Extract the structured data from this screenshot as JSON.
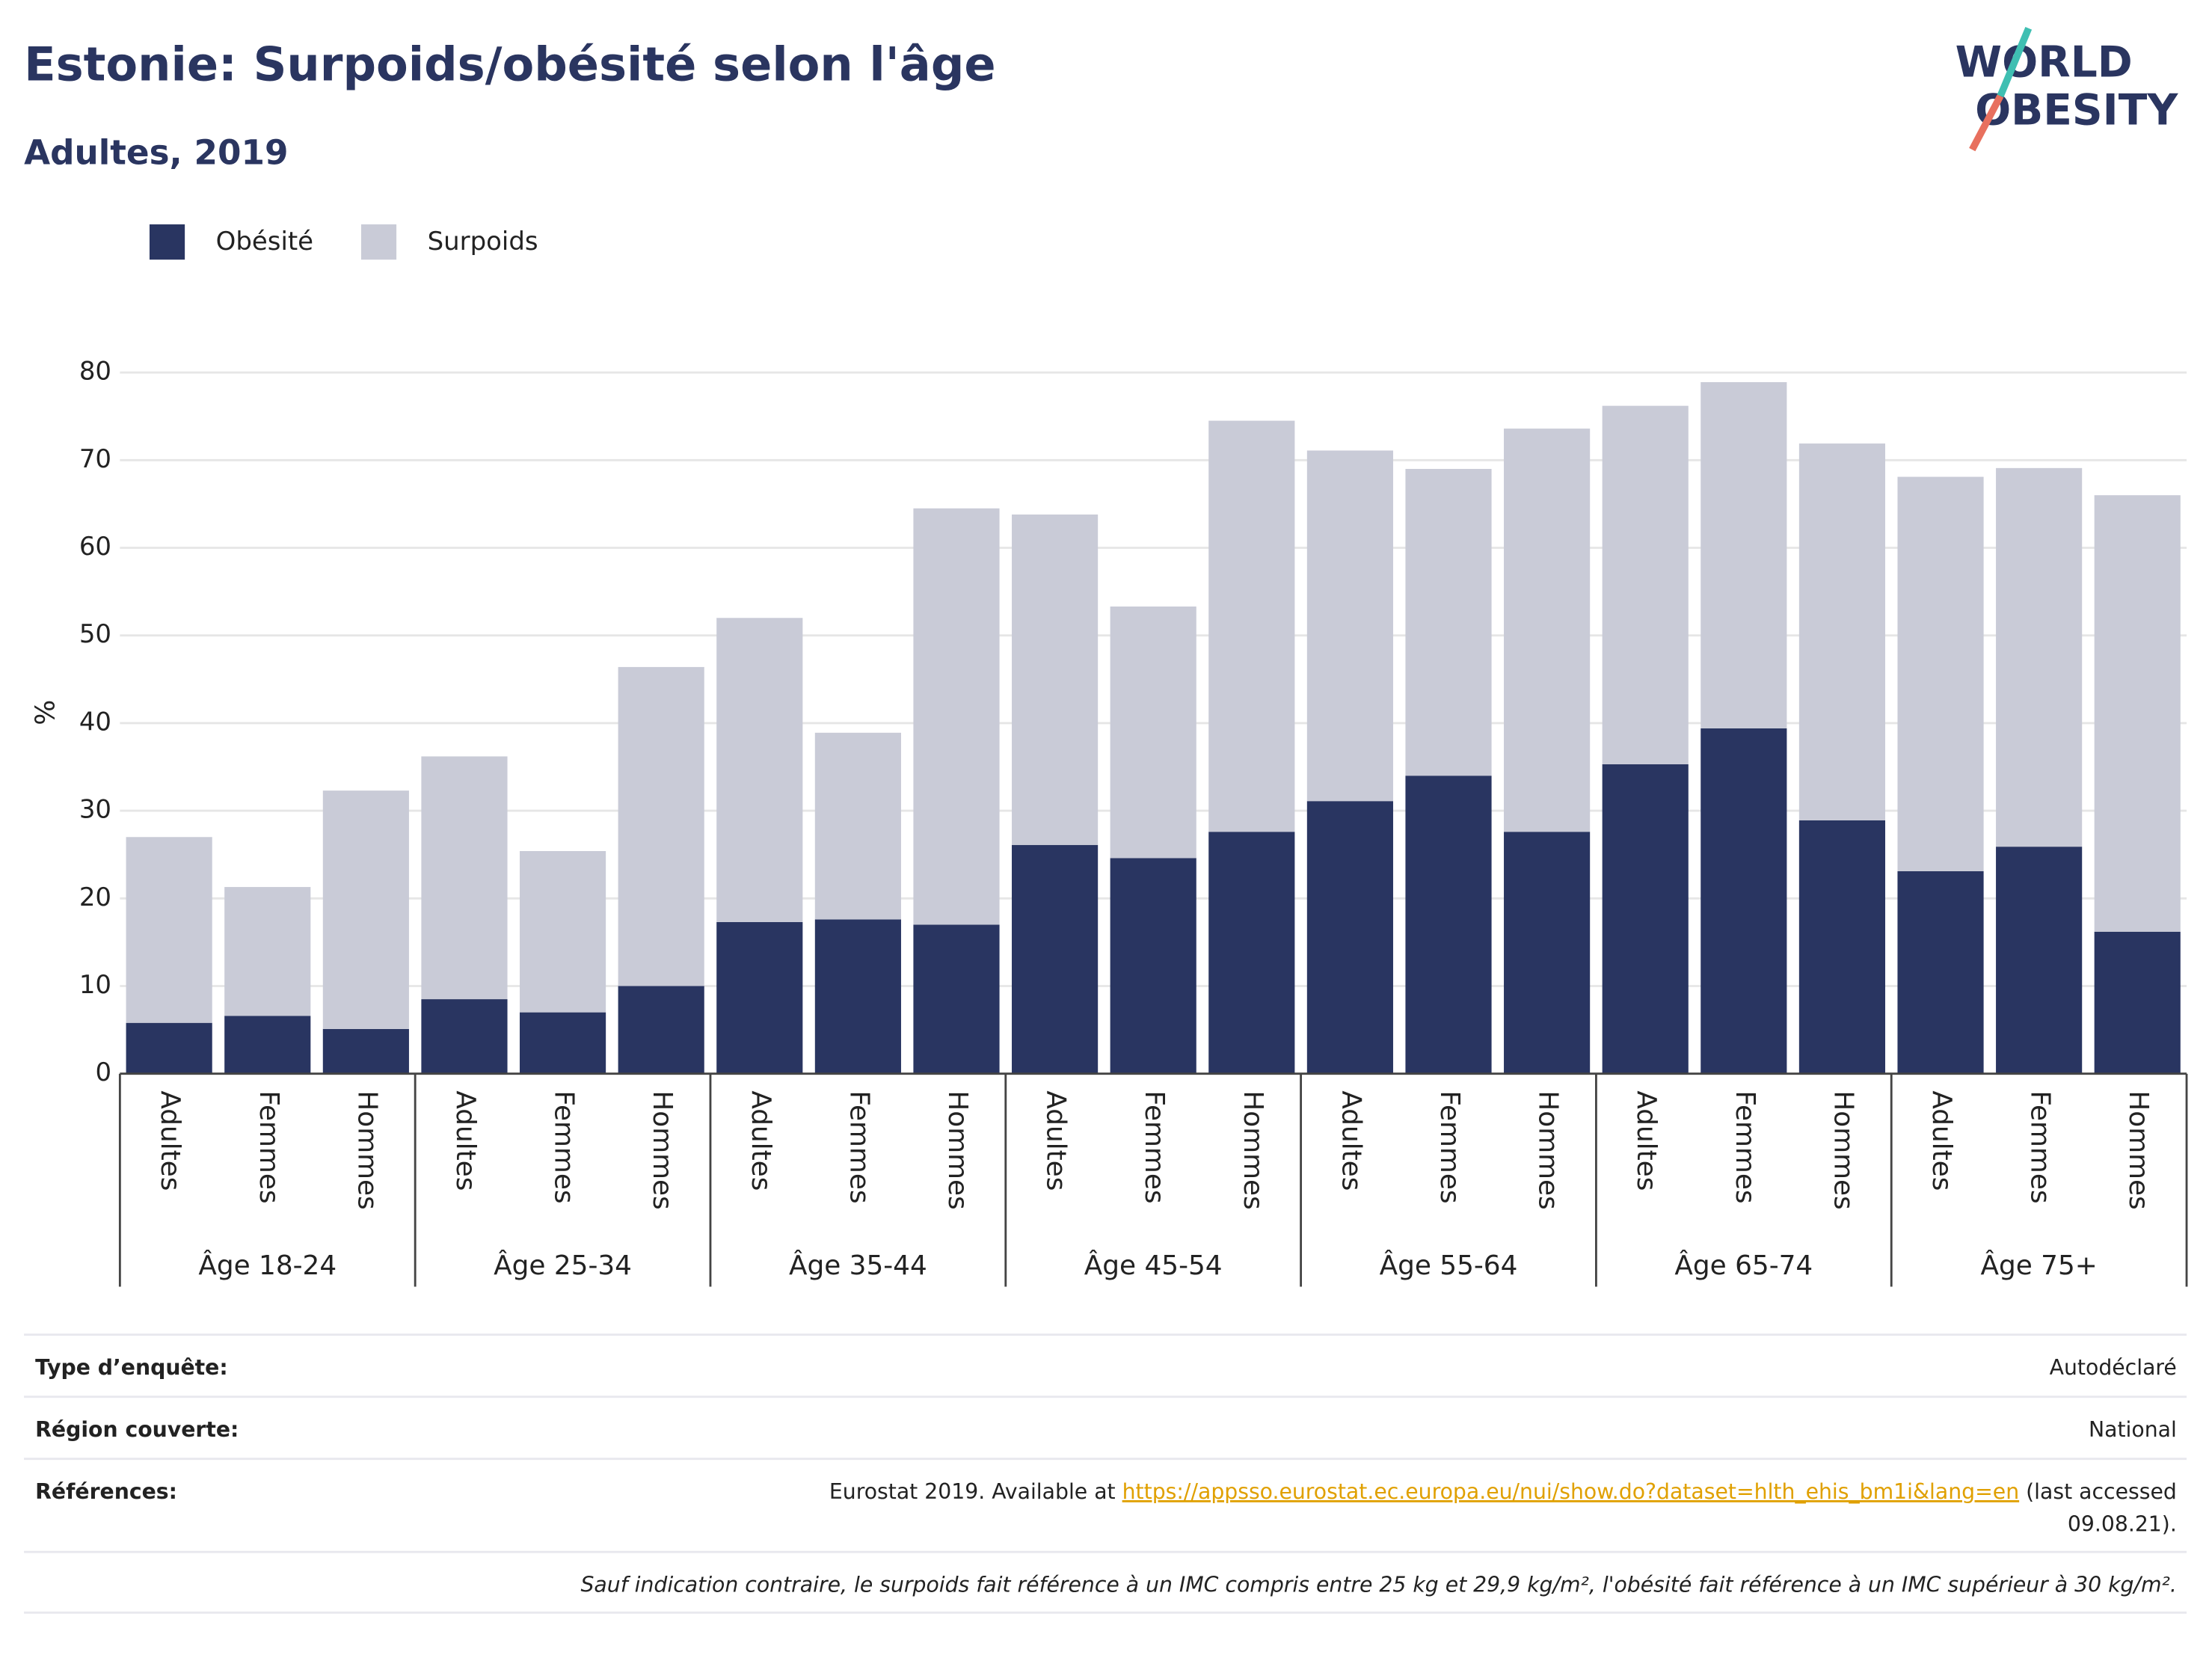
{
  "chart_data": {
    "type": "stacked_bar",
    "title": "Estonie: Surpoids/obésité selon l'âge",
    "subtitle": "Adultes, 2019",
    "y_label": "%",
    "categories": [
      "Adultes",
      "Femmes",
      "Hommes",
      "Adultes",
      "Femmes",
      "Hommes",
      "Adultes",
      "Femmes",
      "Hommes",
      "Adultes",
      "Femmes",
      "Hommes",
      "Adultes",
      "Femmes",
      "Hommes",
      "Adultes",
      "Femmes",
      "Hommes",
      "Adultes",
      "Femmes",
      "Hommes"
    ],
    "groups": [
      "Âge 18-24",
      "Âge 25-34",
      "Âge 35-44",
      "Âge 45-54",
      "Âge 55-64",
      "Âge 65-74",
      "Âge 75+"
    ],
    "series": [
      {
        "name": "Obésité",
        "color": "#293561",
        "values": [
          5.8,
          6.6,
          5.1,
          8.5,
          7.0,
          10.0,
          17.3,
          17.6,
          17.0,
          26.1,
          24.6,
          27.6,
          31.1,
          34.0,
          27.6,
          35.3,
          39.4,
          28.9,
          23.1,
          25.9,
          16.2
        ]
      },
      {
        "name": "Surpoids",
        "color": "#c9cbd7",
        "values": [
          21.2,
          14.7,
          27.2,
          27.7,
          18.4,
          36.4,
          34.7,
          21.3,
          47.5,
          37.7,
          28.7,
          46.9,
          40.0,
          35.0,
          46.0,
          40.9,
          39.5,
          43.0,
          45.0,
          43.2,
          49.8
        ]
      }
    ],
    "ylim": [
      0,
      80
    ],
    "yticks": [
      0,
      10,
      20,
      30,
      40,
      50,
      60,
      70,
      80
    ],
    "grid": true,
    "legend": "top-left"
  },
  "logo": {
    "line1": "WORLD",
    "line2": "OBESITY"
  },
  "footer": {
    "survey": {
      "label": "Type d’enquête:",
      "value": "Autodéclaré"
    },
    "region": {
      "label": "Région couverte:",
      "value": "National"
    },
    "references": {
      "label": "Références:",
      "prefix": "Eurostat 2019. Available at ",
      "link": "https://appsso.eurostat.ec.europa.eu/nui/show.do?dataset=hlth_ehis_bm1i&lang=en",
      "suffix1": " (last accessed",
      "suffix2": "09.08.21)."
    },
    "note": "Sauf indication contraire, le surpoids fait référence à un IMC compris entre 25 kg et 29,9 kg/m², l'obésité fait référence à un IMC supérieur à 30 kg/m²."
  }
}
